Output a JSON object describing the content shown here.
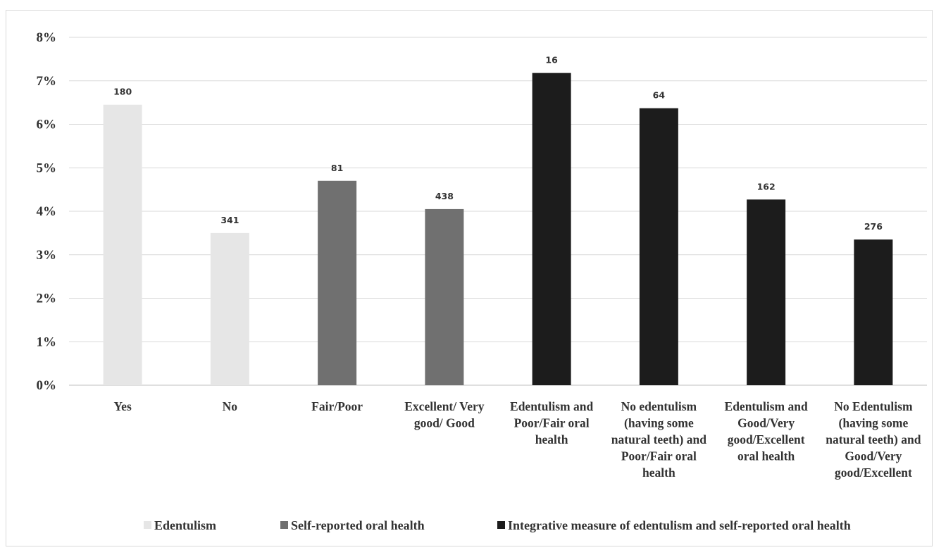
{
  "chart_data": {
    "type": "bar",
    "title": "",
    "xlabel": "",
    "ylabel": "",
    "ylim": [
      0,
      8
    ],
    "y_ticks": [
      "0%",
      "1%",
      "2%",
      "3%",
      "4%",
      "5%",
      "6%",
      "7%",
      "8%"
    ],
    "grid": true,
    "legend_position": "bottom",
    "categories": [
      [
        "Yes"
      ],
      [
        "No"
      ],
      [
        "Fair/Poor"
      ],
      [
        "Excellent/ Very",
        "good/ Good"
      ],
      [
        "Edentulism and",
        "Poor/Fair oral",
        "health"
      ],
      [
        "No edentulism",
        "(having some",
        "natural teeth) and",
        "Poor/Fair oral",
        "health"
      ],
      [
        "Edentulism and",
        "Good/Very",
        "good/Excellent",
        "oral health"
      ],
      [
        "No Edentulism",
        "(having some",
        "natural teeth) and",
        "Good/Very",
        "good/Excellent"
      ]
    ],
    "values_percent": [
      6.45,
      3.5,
      4.7,
      4.05,
      7.18,
      6.37,
      4.27,
      3.35
    ],
    "data_labels": [
      "180",
      "341",
      "81",
      "438",
      "16",
      "64",
      "162",
      "276"
    ],
    "bar_series_index": [
      0,
      0,
      1,
      1,
      2,
      2,
      2,
      2
    ],
    "series": [
      {
        "name": "Edentulism",
        "color": "#e6e6e6"
      },
      {
        "name": "Self-reported oral health",
        "color": "#707070"
      },
      {
        "name": "Integrative measure of edentulism and self-reported oral health",
        "color": "#1c1c1c"
      }
    ]
  }
}
